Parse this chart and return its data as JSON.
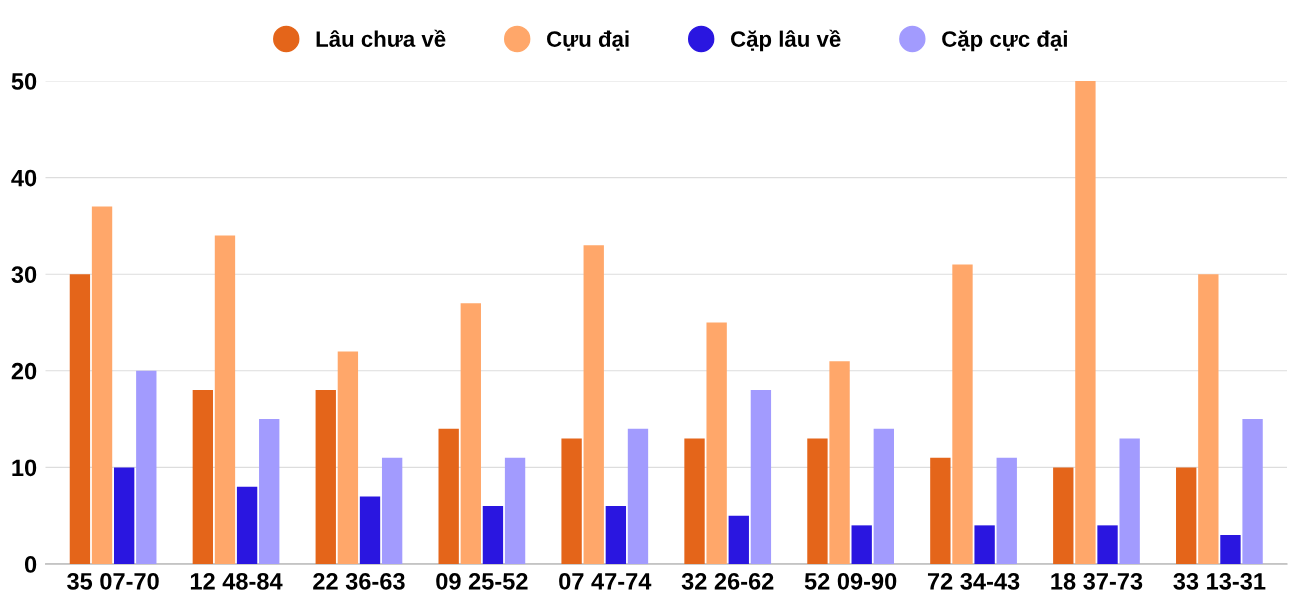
{
  "chart_data": {
    "type": "bar",
    "categories": [
      "35 07-70",
      "12 48-84",
      "22 36-63",
      "09 25-52",
      "07 47-74",
      "32 26-62",
      "52 09-90",
      "72 34-43",
      "18 37-73",
      "33 13-31"
    ],
    "series": [
      {
        "name": "Lâu chưa về",
        "color": "#e4651a",
        "values": [
          30,
          18,
          18,
          14,
          13,
          13,
          13,
          11,
          10,
          10
        ]
      },
      {
        "name": "Cựu đại",
        "color": "#ffa76a",
        "values": [
          37,
          34,
          22,
          27,
          33,
          25,
          21,
          31,
          50,
          30
        ]
      },
      {
        "name": "Cặp lâu về",
        "color": "#2a16e0",
        "values": [
          10,
          8,
          7,
          6,
          6,
          5,
          4,
          4,
          4,
          3
        ]
      },
      {
        "name": "Cặp cực đại",
        "color": "#a29bfe",
        "values": [
          20,
          15,
          11,
          11,
          14,
          18,
          14,
          11,
          13,
          15
        ]
      }
    ],
    "ylim": [
      0,
      50
    ],
    "yticks": [
      0,
      10,
      20,
      30,
      40,
      50
    ],
    "grid": "y",
    "legend": "top"
  }
}
